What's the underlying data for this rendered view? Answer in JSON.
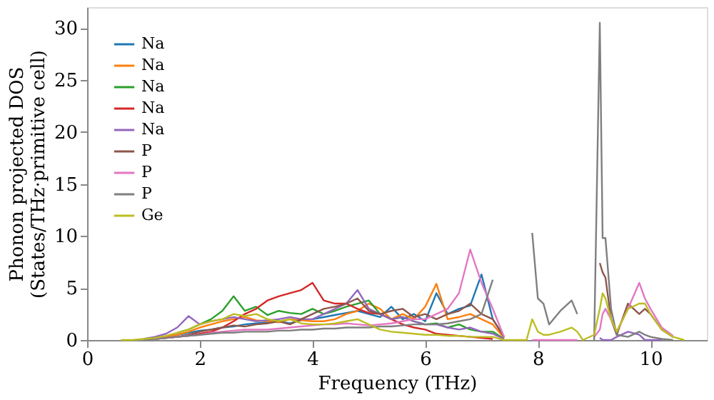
{
  "chart_data": {
    "type": "line",
    "xlabel": "Frequency (THz)",
    "ylabel": "Phonon projected DOS\n(States/THz·primitive cell)",
    "xlim": [
      0,
      11
    ],
    "xticks": [
      0,
      2,
      4,
      6,
      8,
      10
    ],
    "ylim": [
      0,
      32
    ],
    "yticks": [
      0,
      5,
      10,
      15,
      20,
      25,
      30
    ],
    "grid": false,
    "legend": "top left",
    "line_style": "solid",
    "marker": "none",
    "x": [
      0.6,
      0.8,
      1.0,
      1.2,
      1.4,
      1.6,
      1.8,
      2.0,
      2.2,
      2.4,
      2.6,
      2.8,
      3.0,
      3.2,
      3.4,
      3.6,
      3.8,
      4.0,
      4.2,
      4.4,
      4.6,
      4.8,
      5.0,
      5.2,
      5.4,
      5.6,
      5.8,
      6.0,
      6.2,
      6.4,
      6.6,
      6.8,
      7.0,
      7.2,
      7.4,
      7.5,
      7.6,
      7.7,
      7.8,
      7.9,
      8.0,
      8.1,
      8.2,
      8.4,
      8.6,
      8.7,
      8.8,
      9.0,
      9.1,
      9.15,
      9.2,
      9.3,
      9.4,
      9.6,
      9.8,
      9.9,
      10.0,
      10.2,
      10.4,
      10.6
    ],
    "series": [
      {
        "name": "Na",
        "color": "#1f77b4",
        "values": [
          null,
          null,
          null,
          null,
          0.3,
          0.5,
          0.7,
          0.9,
          1.0,
          1.2,
          1.3,
          1.5,
          1.6,
          1.7,
          1.8,
          1.6,
          1.9,
          2.0,
          2.2,
          2.4,
          2.6,
          2.8,
          2.5,
          2.2,
          3.2,
          2.0,
          2.5,
          1.8,
          4.5,
          2.5,
          3.0,
          3.3,
          6.3,
          2.0,
          0.3,
          null,
          null,
          null,
          null,
          null,
          null,
          null,
          null,
          null,
          null,
          null,
          null,
          null,
          null,
          null,
          null,
          null,
          null,
          null,
          null,
          null,
          null,
          null,
          null,
          null
        ]
      },
      {
        "name": "Na",
        "color": "#ff7f0e",
        "values": [
          null,
          null,
          0.1,
          0.2,
          0.3,
          0.5,
          0.8,
          1.2,
          1.5,
          1.8,
          2.0,
          2.2,
          1.9,
          1.8,
          1.7,
          2.0,
          1.9,
          1.8,
          1.8,
          2.0,
          2.5,
          2.8,
          3.5,
          3.0,
          2.0,
          2.5,
          2.0,
          3.2,
          5.4,
          2.0,
          2.2,
          2.5,
          2.0,
          1.5,
          0.2,
          null,
          null,
          null,
          null,
          null,
          null,
          null,
          null,
          null,
          null,
          null,
          null,
          null,
          null,
          null,
          null,
          null,
          null,
          null,
          null,
          null,
          null,
          null,
          null,
          null
        ]
      },
      {
        "name": "Na",
        "color": "#2ca02c",
        "values": [
          null,
          null,
          null,
          null,
          null,
          0.7,
          1.0,
          1.5,
          2.0,
          2.8,
          4.2,
          2.8,
          3.2,
          2.4,
          2.8,
          2.6,
          2.5,
          3.0,
          2.5,
          2.8,
          3.2,
          3.5,
          3.8,
          2.5,
          2.0,
          2.2,
          1.8,
          1.5,
          1.6,
          1.2,
          1.5,
          1.0,
          0.8,
          0.8,
          0.1,
          null,
          null,
          null,
          null,
          null,
          null,
          null,
          null,
          null,
          null,
          null,
          null,
          null,
          null,
          null,
          null,
          null,
          null,
          null,
          null,
          null,
          null,
          null,
          null,
          null
        ]
      },
      {
        "name": "Na",
        "color": "#d62728",
        "values": [
          null,
          null,
          null,
          0.1,
          0.2,
          0.3,
          0.4,
          0.6,
          0.8,
          1.2,
          1.8,
          2.5,
          3.0,
          3.8,
          4.2,
          4.5,
          4.8,
          5.5,
          3.8,
          3.5,
          3.5,
          3.0,
          2.6,
          2.5,
          2.0,
          1.5,
          1.2,
          1.0,
          0.6,
          0.5,
          0.4,
          0.3,
          0.2,
          0.1,
          null,
          null,
          null,
          null,
          null,
          null,
          null,
          null,
          null,
          null,
          null,
          null,
          null,
          null,
          null,
          null,
          null,
          null,
          null,
          null,
          null,
          null,
          null,
          null,
          null,
          null
        ]
      },
      {
        "name": "Na",
        "color": "#9467bd",
        "values": [
          null,
          null,
          0.1,
          0.3,
          0.6,
          1.2,
          2.3,
          1.5,
          1.8,
          2.0,
          2.2,
          2.0,
          1.8,
          1.9,
          2.0,
          2.2,
          2.0,
          2.0,
          2.5,
          3.0,
          3.5,
          4.8,
          3.0,
          2.5,
          2.0,
          2.2,
          1.8,
          1.5,
          1.5,
          1.2,
          1.0,
          1.2,
          0.8,
          0.6,
          0.1,
          null,
          null,
          null,
          null,
          null,
          null,
          null,
          null,
          null,
          null,
          null,
          null,
          null,
          0.2,
          0,
          0,
          0,
          0.3,
          0.8,
          0.5,
          0,
          0,
          0,
          null,
          null
        ]
      },
      {
        "name": "P",
        "color": "#8c564b",
        "values": [
          null,
          null,
          null,
          0.1,
          0.2,
          0.3,
          0.5,
          0.8,
          1.0,
          1.2,
          1.4,
          1.3,
          1.5,
          1.6,
          1.8,
          1.5,
          2.0,
          2.5,
          3.0,
          3.2,
          3.5,
          4.0,
          2.8,
          2.5,
          2.8,
          3.0,
          2.2,
          2.5,
          2.0,
          2.5,
          2.8,
          3.5,
          2.5,
          2.0,
          0.3,
          null,
          null,
          null,
          null,
          null,
          null,
          null,
          null,
          null,
          null,
          null,
          null,
          null,
          7.4,
          6.5,
          6.0,
          2.0,
          0.5,
          3.5,
          2.5,
          3.0,
          2.5,
          1.0,
          0.3,
          null
        ]
      },
      {
        "name": "P",
        "color": "#e377c2",
        "values": [
          null,
          null,
          null,
          0.1,
          0.2,
          0.3,
          0.4,
          0.5,
          0.7,
          0.8,
          0.9,
          1.0,
          1.0,
          1.0,
          1.1,
          1.2,
          1.3,
          1.4,
          1.5,
          1.5,
          1.6,
          1.5,
          1.4,
          1.5,
          1.6,
          1.8,
          2.0,
          2.0,
          2.5,
          3.0,
          4.5,
          8.7,
          5.5,
          3.0,
          0.3,
          null,
          null,
          null,
          null,
          0,
          0,
          0,
          0,
          0,
          0,
          0,
          null,
          0.3,
          1.0,
          2.5,
          3.0,
          2.0,
          0.8,
          3.0,
          5.5,
          4.0,
          3.0,
          1.2,
          0.4,
          null
        ]
      },
      {
        "name": "P",
        "color": "#7f7f7f",
        "values": [
          null,
          null,
          0,
          0.1,
          0.2,
          0.3,
          0.4,
          0.5,
          0.6,
          0.7,
          0.7,
          0.8,
          0.8,
          0.8,
          0.9,
          0.9,
          1.0,
          1.0,
          1.1,
          1.1,
          1.2,
          1.2,
          1.2,
          1.3,
          1.3,
          1.4,
          1.5,
          1.5,
          1.5,
          1.6,
          1.8,
          2.0,
          2.5,
          5.8,
          null,
          null,
          null,
          null,
          null,
          10.3,
          4.0,
          3.5,
          1.5,
          2.8,
          3.8,
          2.5,
          null,
          0,
          30.5,
          9.8,
          9.8,
          3.0,
          0.5,
          0.3,
          0.8,
          0.5,
          0.3,
          0.1,
          0,
          null
        ]
      },
      {
        "name": "Ge",
        "color": "#bcbd22",
        "values": [
          0,
          0,
          0.1,
          0.2,
          0.4,
          0.7,
          1.0,
          1.5,
          1.8,
          2.0,
          2.5,
          2.3,
          2.5,
          2.0,
          1.8,
          2.0,
          1.6,
          1.5,
          1.5,
          1.6,
          1.8,
          2.0,
          1.5,
          1.0,
          0.8,
          0.7,
          0.6,
          0.5,
          0.5,
          0.4,
          0.4,
          0.3,
          0.3,
          0.3,
          0,
          0,
          0,
          0,
          0,
          2.0,
          0.8,
          0.5,
          0.5,
          0.8,
          1.2,
          0.8,
          0,
          0.5,
          3.0,
          4.5,
          4.0,
          2.0,
          0.8,
          3.0,
          3.5,
          3.5,
          2.5,
          1.0,
          0.3,
          0
        ]
      }
    ]
  }
}
